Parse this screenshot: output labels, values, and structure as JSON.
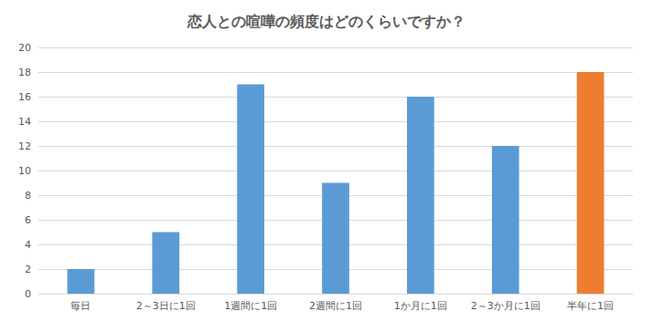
{
  "chart_data": {
    "type": "bar",
    "title": "恋人との喧嘩の頻度はどのくらいですか？",
    "categories": [
      "毎日",
      "2～3日に1回",
      "1週間に1回",
      "2週間に1回",
      "1か月に1回",
      "2～3か月に1回",
      "半年に1回"
    ],
    "values": [
      2,
      5,
      17,
      9,
      16,
      12,
      18
    ],
    "colors": [
      "#5b9bd5",
      "#5b9bd5",
      "#5b9bd5",
      "#5b9bd5",
      "#5b9bd5",
      "#5b9bd5",
      "#ed7d31"
    ],
    "ylim": [
      0,
      20
    ],
    "yticks": [
      0,
      2,
      4,
      6,
      8,
      10,
      12,
      14,
      16,
      18,
      20
    ],
    "grid": true
  }
}
